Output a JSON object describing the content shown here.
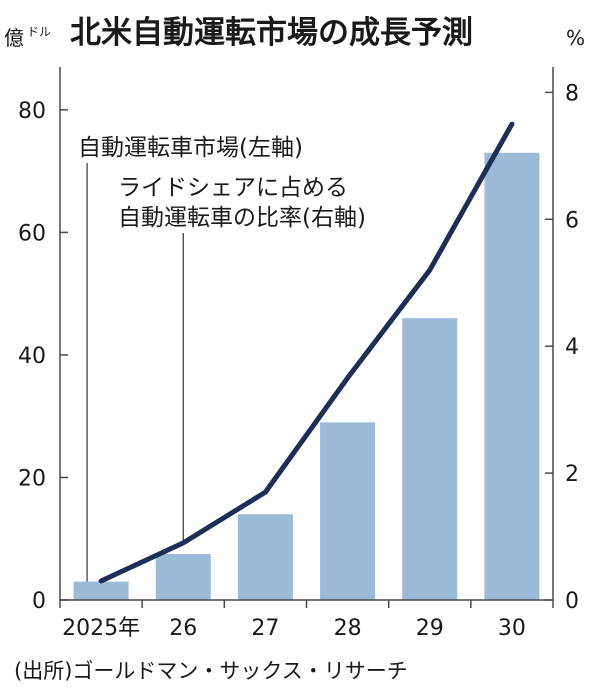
{
  "chart_data": {
    "type": "bar+line",
    "title": "北米自動運転市場の成長予測",
    "left_unit": "億",
    "left_unit_sup": "ドル",
    "right_unit": "%",
    "categories": [
      "2025年",
      "26",
      "27",
      "28",
      "29",
      "30"
    ],
    "series": [
      {
        "name": "自動運転車市場(左軸)",
        "type": "bar",
        "axis": "left",
        "values": [
          3,
          7.5,
          14,
          29,
          46,
          73
        ]
      },
      {
        "name": "ライドシェアに占める自動運転車の比率(右軸)",
        "type": "line",
        "axis": "right",
        "values": [
          0.3,
          0.9,
          1.7,
          3.5,
          5.2,
          7.5
        ]
      }
    ],
    "left_ylim": [
      0,
      87
    ],
    "right_ylim": [
      0,
      8.4
    ],
    "left_ticks": [
      "0",
      "20",
      "40",
      "60",
      "80"
    ],
    "right_ticks": [
      "0",
      "2",
      "4",
      "6",
      "8"
    ],
    "annotations": [
      {
        "lines": [
          "自動運転車市場(左軸)"
        ],
        "target": "bar",
        "category": 0
      },
      {
        "lines": [
          "ライドシェアに占める",
          "自動運転車の比率(右軸)"
        ],
        "target": "line",
        "category": 1
      }
    ],
    "source": "(出所)ゴールドマン・サックス・リサーチ",
    "colors": {
      "bar": "#9bbad8",
      "line": "#1c2f57",
      "axis": "#4a4a4a"
    }
  }
}
